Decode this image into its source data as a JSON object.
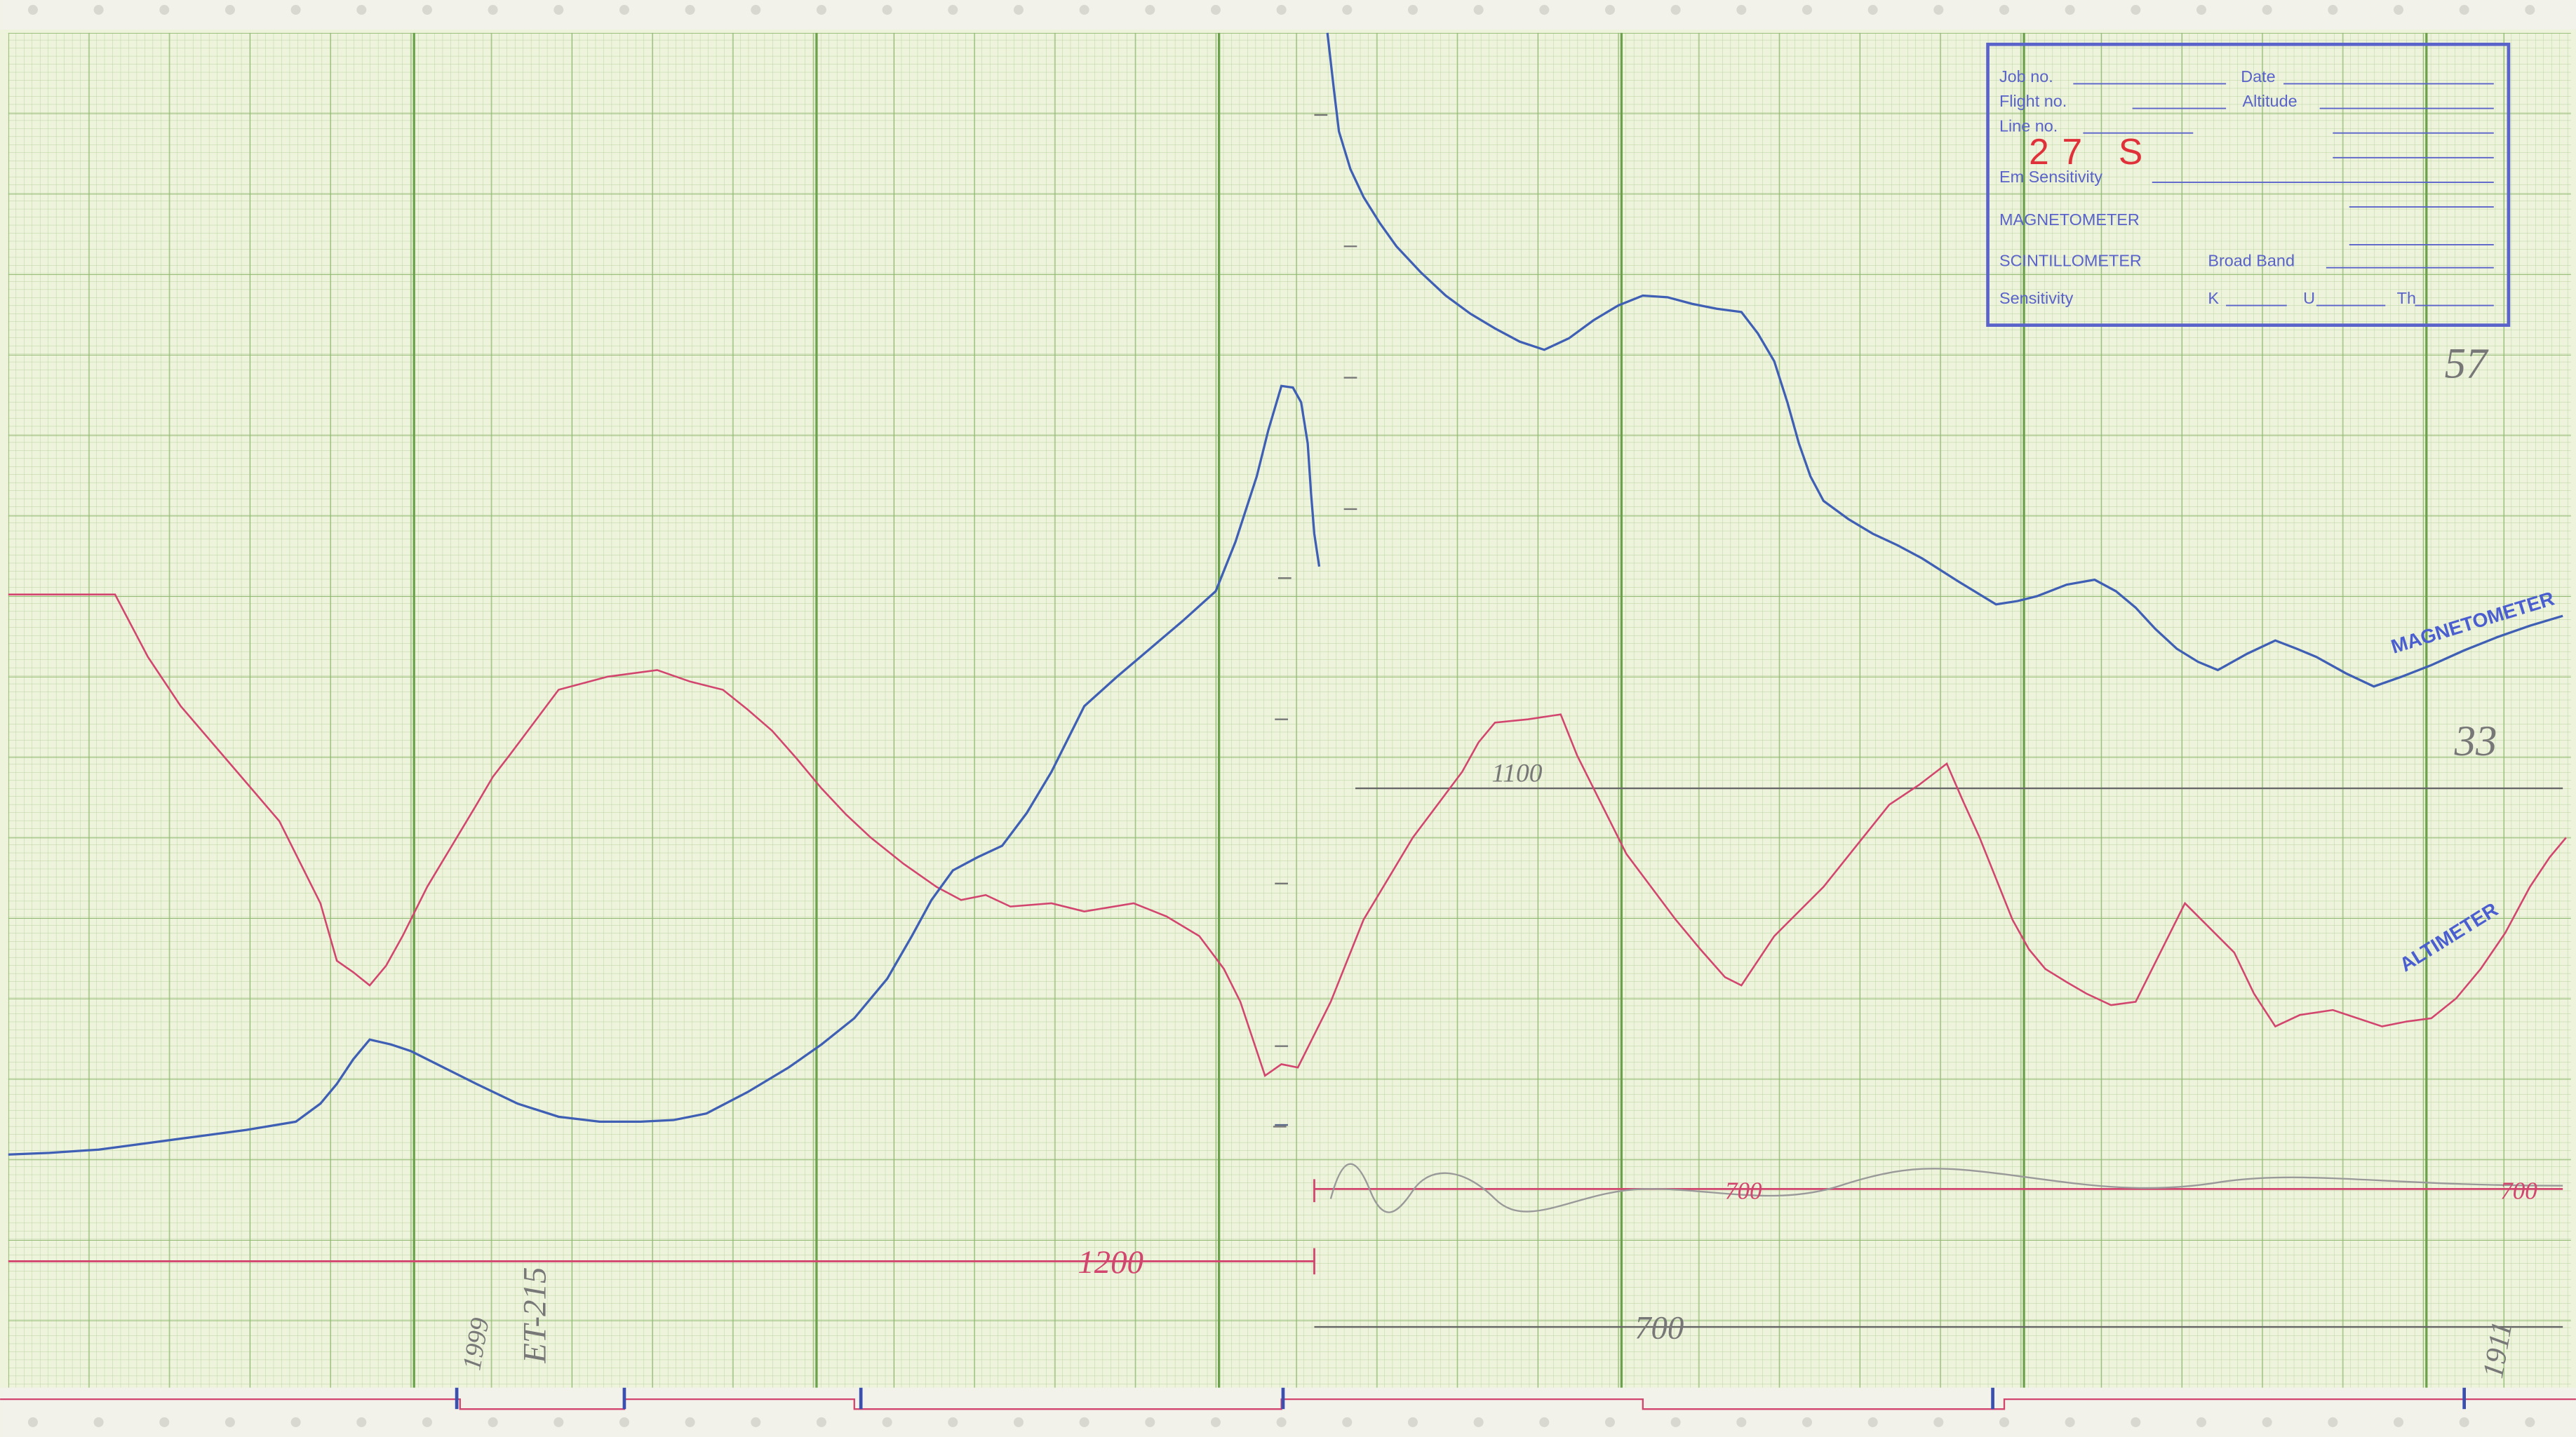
{
  "stamp": {
    "job_no": "Job no.",
    "date": "Date",
    "flight_no": "Flight no.",
    "altitude": "Altitude",
    "line_no": "Line no.",
    "line_value": "27 S",
    "em_sensitivity": "Em Sensitivity",
    "magnetometer": "MAGNETOMETER",
    "scintillometer": "SCINTILLOMETER",
    "broad_band": "Broad Band",
    "sensitivity": "Sensitivity",
    "k": "K",
    "u": "U",
    "th": "Th"
  },
  "trace_labels": {
    "magnetometer": "MAGNETOMETER",
    "altimeter": "ALTIMETER"
  },
  "annotations": {
    "corner_top": "57",
    "corner_mid": "33",
    "level_1100": "1100",
    "level_700_upper": "700",
    "level_700_right": "700",
    "level_700_lower": "700",
    "level_1200": "1200",
    "fiducial_left": "1999",
    "line_ref": "ET-215",
    "fiducial_right": "1911"
  }
}
